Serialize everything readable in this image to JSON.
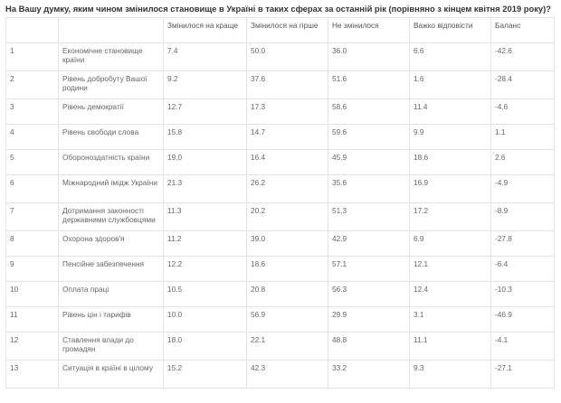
{
  "title": "На Вашу думку, яким чином змінилося становище в Україні в таких сферах за останній рік (порівняно з кінцем квітня 2019 року)?",
  "columns": [
    "",
    "",
    "Змінилося на краще",
    "Змінилося на гірше",
    "Не змінилося",
    "Важко відповісти",
    "Баланс"
  ],
  "rows": [
    {
      "n": "1",
      "sphere": "Економічне становище країни",
      "better": "7.4",
      "worse": "50.0",
      "same": "36.0",
      "hard": "6.6",
      "balance": "-42.6"
    },
    {
      "n": "2",
      "sphere": "Рівень добробуту Вашої родини",
      "better": "9.2",
      "worse": "37.6",
      "same": "51.6",
      "hard": "1.6",
      "balance": "-28.4"
    },
    {
      "n": "3",
      "sphere": "Рівень демократії",
      "better": "12.7",
      "worse": "17.3",
      "same": "58.6",
      "hard": "11.4",
      "balance": "-4.6"
    },
    {
      "n": "4",
      "sphere": "Рівень свободи слова",
      "better": "15.8",
      "worse": "14.7",
      "same": "59.6",
      "hard": "9.9",
      "balance": "1.1"
    },
    {
      "n": "5",
      "sphere": "Обороноздатність країни",
      "better": "19.0",
      "worse": "16.4",
      "same": "45.9",
      "hard": "18.6",
      "balance": "2.6"
    },
    {
      "n": "6",
      "sphere": "Міжнародний імідж України",
      "better": "21.3",
      "worse": "26.2",
      "same": "35.6",
      "hard": "16.9",
      "balance": "-4.9"
    },
    {
      "n": "7",
      "sphere": "Дотримання законності державними службовцями",
      "better": "11.3",
      "worse": "20.2",
      "same": "51.3",
      "hard": "17.2",
      "balance": "-8.9"
    },
    {
      "n": "8",
      "sphere": "Охорона здоров'я",
      "better": "11.2",
      "worse": "39.0",
      "same": "42.9",
      "hard": "6.9",
      "balance": "-27.8"
    },
    {
      "n": "9",
      "sphere": "Пенсійне забезпечення",
      "better": "12.2",
      "worse": "18.6",
      "same": "57.1",
      "hard": "12.1",
      "balance": "-6.4"
    },
    {
      "n": "10",
      "sphere": "Оплата праці",
      "better": "10.5",
      "worse": "20.8",
      "same": "56.3",
      "hard": "12.4",
      "balance": "-10.3"
    },
    {
      "n": "11",
      "sphere": "Рівень цін і тарифів",
      "better": "10.0",
      "worse": "56.9",
      "same": "29.9",
      "hard": "3.1",
      "balance": "-46.9"
    },
    {
      "n": "12",
      "sphere": "Ставлення влади до громадян",
      "better": "18.0",
      "worse": "22.1",
      "same": "48.8",
      "hard": "11.1",
      "balance": "-4.1"
    },
    {
      "n": "13",
      "sphere": "Ситуація в країні в цілому",
      "better": "15.2",
      "worse": "42.3",
      "same": "33.2",
      "hard": "9.3",
      "balance": "-27.1"
    }
  ]
}
